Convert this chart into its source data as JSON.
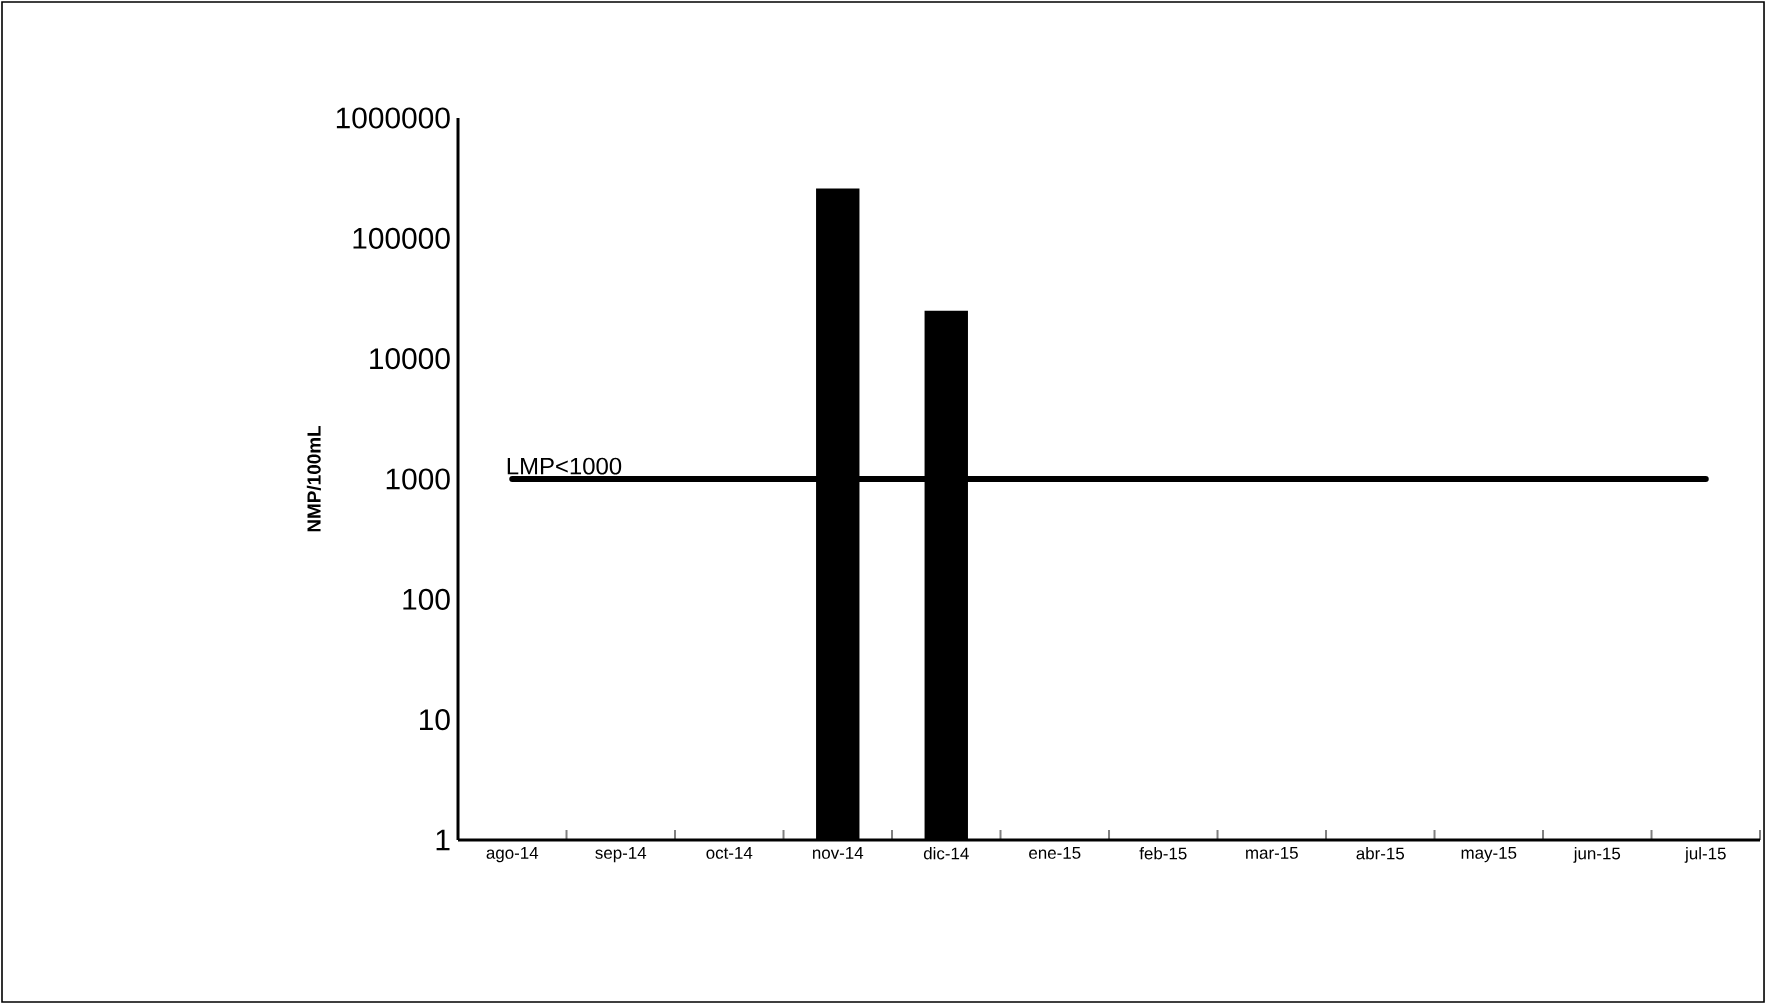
{
  "chart_data": {
    "type": "bar",
    "ylabel": "NMP/100mL",
    "categories": [
      "ago-14",
      "sep-14",
      "oct-14",
      "nov-14",
      "dic-14",
      "ene-15",
      "feb-15",
      "mar-15",
      "abr-15",
      "may-15",
      "jun-15",
      "jul-15"
    ],
    "values": [
      null,
      null,
      null,
      260000,
      25000,
      null,
      null,
      null,
      null,
      null,
      null,
      null
    ],
    "color": "#000000",
    "log": "y",
    "ylim": [
      1,
      1000000
    ],
    "yticks": [
      1,
      10,
      100,
      1000,
      10000,
      100000,
      1000000
    ],
    "grid": false,
    "ref_lines": [
      {
        "axis": "y",
        "value": 1000,
        "label": "LMP<1000",
        "color": "#000000"
      }
    ]
  }
}
